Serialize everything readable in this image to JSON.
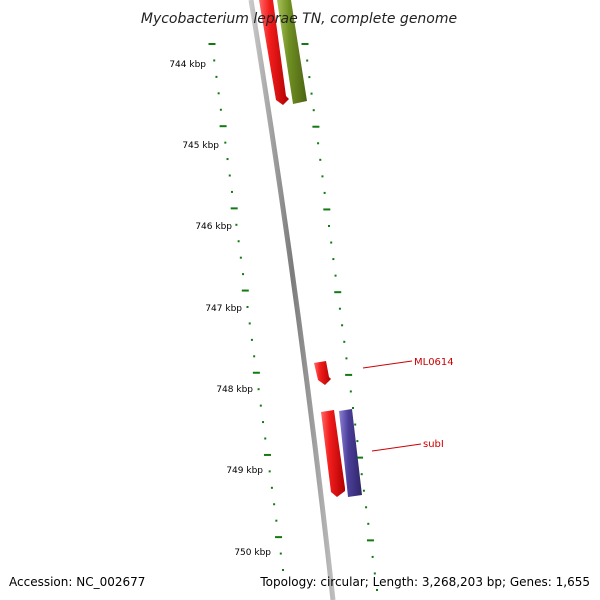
{
  "title": "Mycobacterium leprae TN, complete genome",
  "footer": {
    "accession": "Accession: NC_002677",
    "topology": "Topology: circular; Length: 3,268,203 bp; Genes: 1,655"
  },
  "ticks": [
    {
      "label": "744 kbp"
    },
    {
      "label": "745 kbp"
    },
    {
      "label": "746 kbp"
    },
    {
      "label": "747 kbp"
    },
    {
      "label": "748 kbp"
    },
    {
      "label": "749 kbp"
    },
    {
      "label": "750 kbp"
    }
  ],
  "genes": [
    {
      "name": "ML0614",
      "color": "#e8161b"
    },
    {
      "name": "subI",
      "color": "#e8161b"
    }
  ],
  "colors": {
    "backbone": "#8a8a8a",
    "tick": "#117a11",
    "gene_red": "#e8161b",
    "gene_green": "#6b8e23",
    "gene_purple": "#4b3f9a",
    "label": "#cc0000"
  }
}
